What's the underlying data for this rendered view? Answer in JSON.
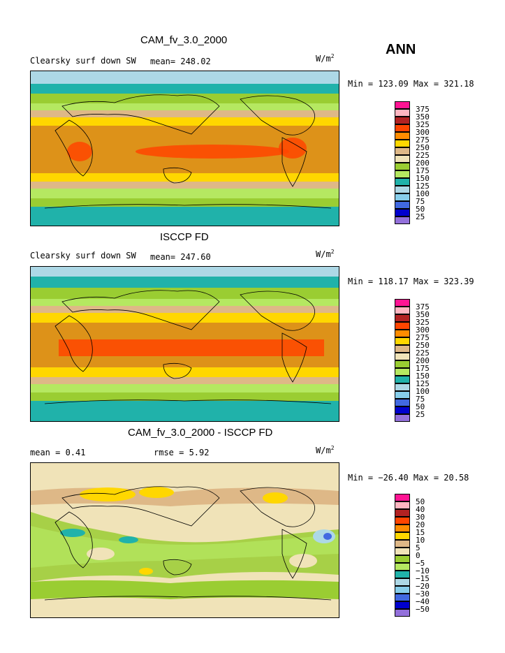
{
  "season": "ANN",
  "panels": [
    {
      "title": "CAM_fv_3.0_2000",
      "variable": "Clearsky surf down SW",
      "stat1": "mean= 248.02",
      "stat2": "",
      "units_base": "W/m",
      "units_exp": "2",
      "minmax": "Min = 123.09 Max = 321.18",
      "legend_labels": [
        "375",
        "350",
        "325",
        "300",
        "275",
        "250",
        "225",
        "200",
        "175",
        "150",
        "125",
        "100",
        "75",
        "50",
        "25"
      ]
    },
    {
      "title": "ISCCP FD",
      "variable": "Clearsky surf down SW",
      "stat1": "mean= 247.60",
      "stat2": "",
      "units_base": "W/m",
      "units_exp": "2",
      "minmax": "Min = 118.17 Max = 323.39",
      "legend_labels": [
        "375",
        "350",
        "325",
        "300",
        "275",
        "250",
        "225",
        "200",
        "175",
        "150",
        "125",
        "100",
        "75",
        "50",
        "25"
      ]
    },
    {
      "title": "CAM_fv_3.0_2000 - ISCCP FD",
      "variable": "mean =    0.41",
      "stat1": "rmse =    5.92",
      "stat2": "",
      "units_base": "W/m",
      "units_exp": "2",
      "minmax": "Min = −26.40 Max =  20.58",
      "legend_labels": [
        "50",
        "40",
        "30",
        "20",
        "15",
        "10",
        "5",
        "0",
        "−5",
        "−10",
        "−15",
        "−20",
        "−30",
        "−40",
        "−50"
      ]
    }
  ],
  "colors": {
    "legend_scale": [
      "#ff1493",
      "#ffb6c1",
      "#b22222",
      "#ff4500",
      "#ff8c00",
      "#ffd700",
      "#ffe066",
      "#deb887",
      "#f0e3b8",
      "#9acd32",
      "#b5e861",
      "#20b2aa",
      "#add8e6",
      "#4169e1",
      "#0000cd",
      "#9370db"
    ],
    "ocean_cool": "#20b2aa",
    "land_line": "#000000"
  }
}
